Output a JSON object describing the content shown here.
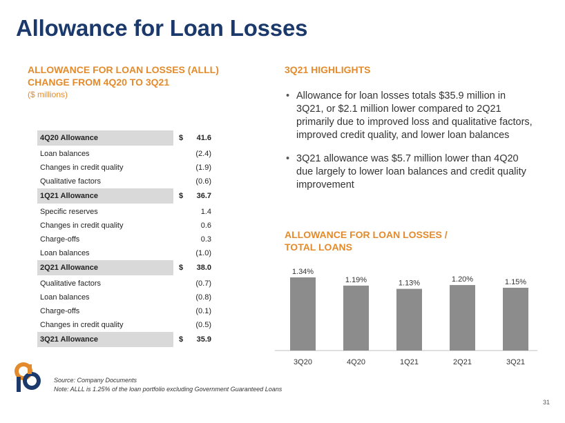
{
  "title": "Allowance for Loan Losses",
  "left_section": {
    "heading_line1": "ALLOWANCE FOR LOAN LOSSES (ALLL)",
    "heading_line2": "CHANGE FROM 4Q20 TO 3Q21",
    "subheading": "($ millions)"
  },
  "table": {
    "rows": [
      {
        "label": "4Q20 Allowance",
        "currency": "$",
        "value": "41.6",
        "total": true
      },
      {
        "label": "Loan balances",
        "currency": "",
        "value": "(2.4)",
        "total": false
      },
      {
        "label": "Changes in credit quality",
        "currency": "",
        "value": "(1.9)",
        "total": false
      },
      {
        "label": "Qualitative factors",
        "currency": "",
        "value": "(0.6)",
        "total": false
      },
      {
        "label": "1Q21 Allowance",
        "currency": "$",
        "value": "36.7",
        "total": true
      },
      {
        "label": "Specific reserves",
        "currency": "",
        "value": "1.4",
        "total": false
      },
      {
        "label": "Changes in credit quality",
        "currency": "",
        "value": "0.6",
        "total": false
      },
      {
        "label": "Charge-offs",
        "currency": "",
        "value": "0.3",
        "total": false
      },
      {
        "label": "Loan balances",
        "currency": "",
        "value": "(1.0)",
        "total": false
      },
      {
        "label": "2Q21 Allowance",
        "currency": "$",
        "value": "38.0",
        "total": true
      },
      {
        "label": "Qualitative factors",
        "currency": "",
        "value": "(0.7)",
        "total": false
      },
      {
        "label": "Loan balances",
        "currency": "",
        "value": "(0.8)",
        "total": false
      },
      {
        "label": "Charge-offs",
        "currency": "",
        "value": "(0.1)",
        "total": false
      },
      {
        "label": "Changes in credit quality",
        "currency": "",
        "value": "(0.5)",
        "total": false
      },
      {
        "label": "3Q21 Allowance",
        "currency": "$",
        "value": "35.9",
        "total": true
      }
    ]
  },
  "highlights": {
    "heading": "3Q21 HIGHLIGHTS",
    "bullets": [
      "Allowance for loan losses totals $35.9 million in 3Q21, or $2.1 million lower compared to 2Q21 primarily due to improved loss and qualitative factors, improved credit quality, and lower loan balances",
      "3Q21 allowance was $5.7 million lower than 4Q20 due largely to lower loan balances and credit quality improvement"
    ],
    "bullet_glyph": "•"
  },
  "bar_section": {
    "heading_line1": "ALLOWANCE FOR LOAN LOSSES /",
    "heading_line2": "TOTAL LOANS"
  },
  "chart_data": {
    "type": "bar",
    "title": "ALLOWANCE FOR LOAN LOSSES / TOTAL LOANS",
    "categories": [
      "3Q20",
      "4Q20",
      "1Q21",
      "2Q21",
      "3Q21"
    ],
    "values": [
      1.34,
      1.19,
      1.13,
      1.2,
      1.15
    ],
    "data_labels": [
      "1.34%",
      "1.19%",
      "1.13%",
      "1.20%",
      "1.15%"
    ],
    "xlabel": "",
    "ylabel": "",
    "ylim": [
      0,
      1.34
    ],
    "grid": false,
    "bar_color": "#8c8c8c"
  },
  "footnotes": {
    "source": "Source: Company Documents",
    "note": "Note: ALLL is 1.25% of the loan portfolio excluding Government Guaranteed Loans"
  },
  "page_number": "31",
  "colors": {
    "title": "#1b3a6b",
    "accent": "#e38b2c",
    "total_row_bg": "#d9d9d9",
    "logo_blue": "#1b3a6b",
    "logo_orange": "#e38b2c"
  }
}
